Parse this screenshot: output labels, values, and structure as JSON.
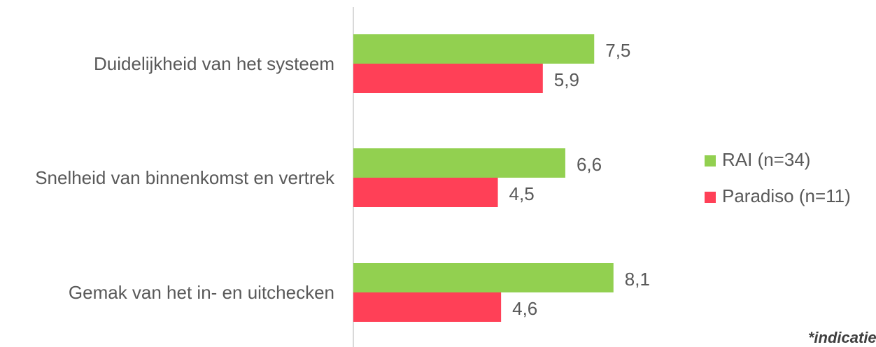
{
  "chart_data": {
    "type": "bar",
    "orientation": "horizontal",
    "categories": [
      "Duidelijkheid van het systeem",
      "Snelheid van binnenkomst en vertrek",
      "Gemak van het in- en uitchecken"
    ],
    "series": [
      {
        "name": "RAI (n=34)",
        "color": "#92d050",
        "values": [
          7.5,
          6.6,
          8.1
        ],
        "value_labels": [
          "7,5",
          "6,6",
          "8,1"
        ]
      },
      {
        "name": "Paradiso (n=11)",
        "color": "#ff4057",
        "values": [
          5.9,
          4.5,
          4.6
        ],
        "value_labels": [
          "5,9",
          "4,5",
          "4,6"
        ]
      }
    ],
    "xlim": [
      0,
      10
    ],
    "legend": "right",
    "footnote": "*indicatief"
  }
}
